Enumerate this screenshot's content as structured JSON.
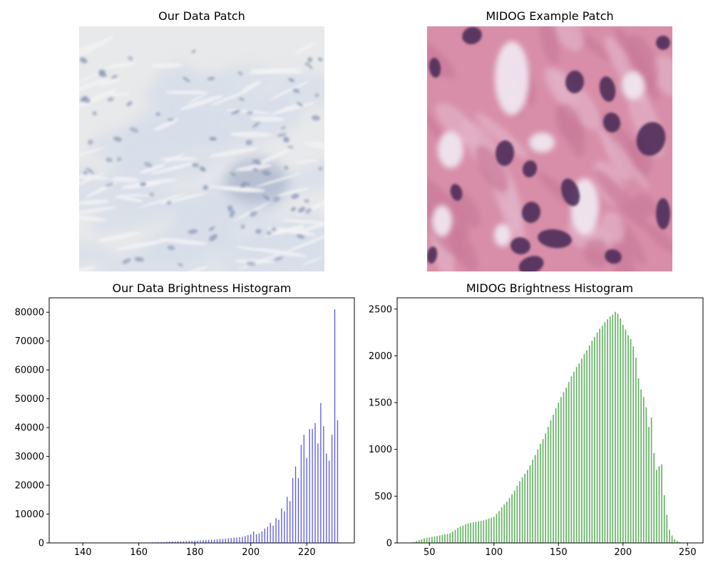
{
  "chart_data": [
    {
      "type": "image",
      "title": "Our Data Patch",
      "palette": {
        "background": "#e8e9ea",
        "tissue": "#d7dde8",
        "nuclei": "#8d9ab8"
      }
    },
    {
      "type": "image",
      "title": "MIDOG Example Patch",
      "palette": {
        "background": "#d88ea8",
        "stroma": "#e2b2c8",
        "lumen": "#efe6f0",
        "nuclei": "#4c2d5a"
      }
    },
    {
      "type": "bar",
      "title": "Our Data Brightness Histogram",
      "xlabel": "",
      "ylabel": "",
      "xlim": [
        128,
        237
      ],
      "ylim": [
        0,
        85000
      ],
      "xticks": [
        140,
        160,
        180,
        200,
        220
      ],
      "yticks": [
        0,
        10000,
        20000,
        30000,
        40000,
        50000,
        60000,
        70000,
        80000
      ],
      "color": "#3a3ae8",
      "x": [
        163,
        164,
        165,
        166,
        167,
        168,
        169,
        170,
        171,
        172,
        173,
        174,
        175,
        176,
        177,
        178,
        179,
        180,
        181,
        182,
        183,
        184,
        185,
        186,
        187,
        188,
        189,
        190,
        191,
        192,
        193,
        194,
        195,
        196,
        197,
        198,
        199,
        200,
        201,
        202,
        203,
        204,
        205,
        206,
        207,
        208,
        209,
        210,
        211,
        212,
        213,
        214,
        215,
        216,
        217,
        218,
        219,
        220,
        221,
        222,
        223,
        224,
        225,
        226,
        227,
        228,
        229,
        230,
        231
      ],
      "values": [
        100,
        150,
        200,
        200,
        250,
        300,
        300,
        400,
        450,
        500,
        500,
        550,
        600,
        600,
        650,
        700,
        700,
        800,
        850,
        900,
        1000,
        1000,
        1100,
        1150,
        1200,
        1300,
        1400,
        1400,
        1500,
        1600,
        1700,
        1800,
        1800,
        2000,
        2100,
        2400,
        2700,
        3000,
        4000,
        3000,
        3300,
        4000,
        5000,
        5600,
        7000,
        6000,
        8600,
        8000,
        12000,
        11000,
        16000,
        14500,
        22500,
        26500,
        22500,
        34000,
        37500,
        29500,
        39500,
        39500,
        41500,
        34500,
        48500,
        40500,
        31000,
        28500,
        37500,
        81000,
        42500
      ]
    },
    {
      "type": "bar",
      "title": "MIDOG Brightness Histogram",
      "xlabel": "",
      "ylabel": "",
      "xlim": [
        25,
        262
      ],
      "ylim": [
        0,
        2620
      ],
      "xticks": [
        50,
        100,
        150,
        200,
        250
      ],
      "yticks": [
        0,
        500,
        1000,
        1500,
        2000,
        2500
      ],
      "color": "#4aa64a",
      "x": [
        36,
        38,
        40,
        42,
        44,
        46,
        48,
        50,
        52,
        54,
        56,
        58,
        60,
        62,
        64,
        66,
        68,
        70,
        72,
        74,
        76,
        78,
        80,
        82,
        84,
        86,
        88,
        90,
        92,
        94,
        96,
        98,
        100,
        102,
        104,
        106,
        108,
        110,
        112,
        114,
        116,
        118,
        120,
        122,
        124,
        126,
        128,
        130,
        132,
        134,
        136,
        138,
        140,
        142,
        144,
        146,
        148,
        150,
        152,
        154,
        156,
        158,
        160,
        162,
        164,
        166,
        168,
        170,
        172,
        174,
        176,
        178,
        180,
        182,
        184,
        186,
        188,
        190,
        192,
        194,
        196,
        198,
        200,
        202,
        204,
        206,
        208,
        210,
        212,
        214,
        216,
        218,
        220,
        222,
        224,
        226,
        228,
        230,
        232,
        234,
        236,
        238,
        240,
        242,
        244,
        246,
        248,
        250,
        252
      ],
      "values": [
        5,
        10,
        20,
        30,
        40,
        50,
        55,
        60,
        65,
        70,
        75,
        80,
        85,
        90,
        95,
        105,
        120,
        140,
        160,
        175,
        185,
        200,
        210,
        215,
        220,
        225,
        230,
        235,
        240,
        250,
        260,
        270,
        280,
        310,
        340,
        380,
        410,
        440,
        480,
        520,
        560,
        610,
        660,
        700,
        740,
        780,
        830,
        890,
        940,
        1000,
        1060,
        1110,
        1170,
        1240,
        1310,
        1370,
        1440,
        1500,
        1560,
        1610,
        1660,
        1720,
        1780,
        1830,
        1880,
        1920,
        1970,
        2020,
        2060,
        2110,
        2160,
        2200,
        2250,
        2290,
        2320,
        2360,
        2390,
        2420,
        2440,
        2470,
        2450,
        2400,
        2330,
        2280,
        2220,
        2180,
        2100,
        1980,
        1760,
        1640,
        1560,
        1450,
        1240,
        1340,
        960,
        780,
        820,
        840,
        510,
        300,
        140,
        80,
        40,
        20,
        10,
        5,
        2,
        1,
        0
      ]
    }
  ]
}
